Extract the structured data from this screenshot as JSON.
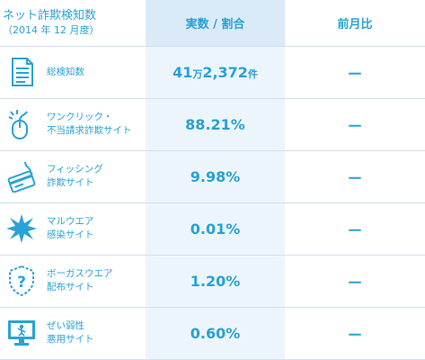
{
  "header": {
    "title": "ネット詐欺検知数",
    "subtitle": "（2014 年 12 月度）",
    "col_value": "実数 / 割合",
    "col_change": "前月比"
  },
  "rows": [
    {
      "label1": "総検知数",
      "label2": "",
      "value_num": "41",
      "value_unit1": "万",
      "value_num2": "2,372",
      "value_unit2": "件",
      "change": "ー",
      "icon": "document-icon"
    },
    {
      "label1": "ワンクリック・",
      "label2": "不当請求詐欺サイト",
      "value": "88.21%",
      "change": "ー",
      "icon": "mouse-click-icon"
    },
    {
      "label1": "フィッシング",
      "label2": "詐欺サイト",
      "value": "9.98%",
      "change": "ー",
      "icon": "phishing-card-icon"
    },
    {
      "label1": "マルウエア",
      "label2": "感染サイト",
      "value": "0.01%",
      "change": "ー",
      "icon": "malware-burst-icon"
    },
    {
      "label1": "ボーガスウエア",
      "label2": "配布サイト",
      "value": "1.20%",
      "change": "ー",
      "icon": "bogus-shield-icon"
    },
    {
      "label1": "ぜい弱性",
      "label2": "悪用サイト",
      "value": "0.60%",
      "change": "ー",
      "icon": "vulnerable-monitor-icon"
    }
  ],
  "colors": {
    "accent": "#29a3d6",
    "header_bg": "#dbeaf7",
    "value_bg": "#edf5fc",
    "separator": "#cfe0ef"
  }
}
